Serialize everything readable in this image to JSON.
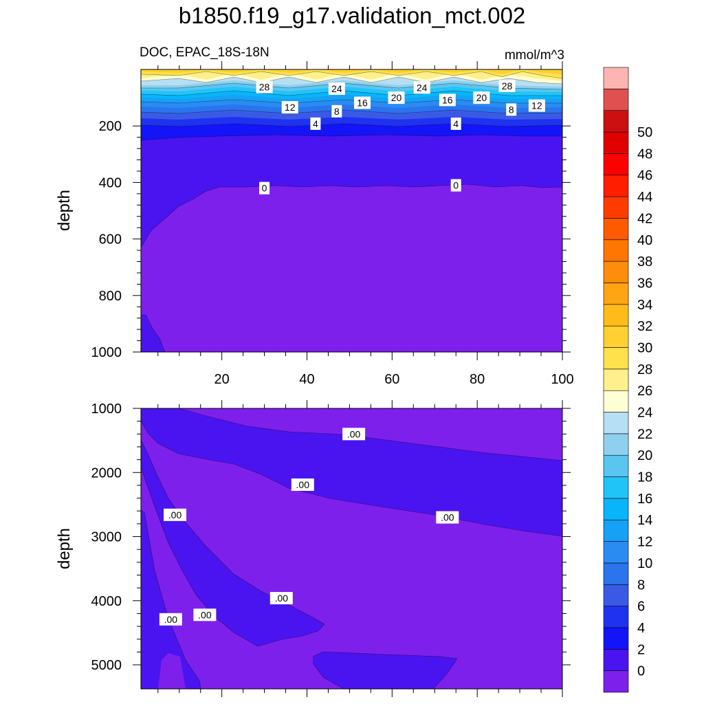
{
  "title": "b1850.f19_g17.validation_mct.002",
  "colors": {
    "levels": [
      "#7e20ec",
      "#4a14f0",
      "#1414f8",
      "#1e32f0",
      "#3a5ae6",
      "#2a74ee",
      "#2a8cf2",
      "#16a0f6",
      "#08b4fa",
      "#20c4f8",
      "#5ac6f0",
      "#8ed0ee",
      "#b6dff4",
      "#ffffd6",
      "#fff08c",
      "#ffe14c",
      "#ffd030",
      "#ffbb18",
      "#ffa514",
      "#ff8c0a",
      "#ff7600",
      "#ff5a00",
      "#ff3c00",
      "#ff1e00",
      "#ff0000",
      "#e00000",
      "#cc1010",
      "#e05050",
      "#ffb4b4"
    ]
  },
  "colorbar": {
    "labels": [
      "0",
      "2",
      "4",
      "6",
      "8",
      "10",
      "12",
      "14",
      "16",
      "18",
      "20",
      "22",
      "24",
      "26",
      "28",
      "30",
      "32",
      "34",
      "36",
      "38",
      "40",
      "42",
      "44",
      "46",
      "48",
      "50"
    ]
  },
  "chart_data": [
    {
      "type": "heatmap",
      "subtitle_left": "DOC, EPAC_18S-18N",
      "subtitle_right": "mmol/m^3",
      "ylabel": "depth",
      "xlabel": "",
      "xlim": [
        1,
        100
      ],
      "ylim": [
        1000,
        0
      ],
      "xticks": [
        "20",
        "40",
        "60",
        "80",
        "100"
      ],
      "xtick_values": [
        20,
        40,
        60,
        80,
        100
      ],
      "yticks": [
        "200",
        "400",
        "600",
        "800",
        "1000"
      ],
      "ytick_values": [
        200,
        400,
        600,
        800,
        1000
      ],
      "contour_labels": [
        {
          "text": "28",
          "x": 30,
          "y": 62
        },
        {
          "text": "24",
          "x": 47,
          "y": 68
        },
        {
          "text": "12",
          "x": 36,
          "y": 134
        },
        {
          "text": "8",
          "x": 47,
          "y": 148
        },
        {
          "text": "16",
          "x": 53,
          "y": 118
        },
        {
          "text": "20",
          "x": 61,
          "y": 100
        },
        {
          "text": "24",
          "x": 67,
          "y": 64
        },
        {
          "text": "16",
          "x": 73,
          "y": 108
        },
        {
          "text": "20",
          "x": 81,
          "y": 100
        },
        {
          "text": "28",
          "x": 87,
          "y": 58
        },
        {
          "text": "8",
          "x": 88,
          "y": 142
        },
        {
          "text": "12",
          "x": 94,
          "y": 128
        },
        {
          "text": "4",
          "x": 42,
          "y": 192
        },
        {
          "text": "4",
          "x": 75,
          "y": 192
        },
        {
          "text": "0",
          "x": 30,
          "y": 420
        },
        {
          "text": "0",
          "x": 75,
          "y": 410
        }
      ]
    },
    {
      "type": "heatmap",
      "ylabel": "depth",
      "xlabel": "",
      "xlim": [
        1,
        100
      ],
      "ylim": [
        5375,
        1000
      ],
      "yticks": [
        "1000",
        "2000",
        "3000",
        "4000",
        "5000"
      ],
      "ytick_values": [
        1000,
        2000,
        3000,
        4000,
        5000
      ],
      "contour_labels": [
        {
          "text": ".00",
          "x": 51,
          "y": 1400
        },
        {
          "text": ".00",
          "x": 39,
          "y": 2190
        },
        {
          "text": ".00",
          "x": 73,
          "y": 2700
        },
        {
          "text": ".00",
          "x": 9,
          "y": 2660
        },
        {
          "text": ".00",
          "x": 34,
          "y": 3960
        },
        {
          "text": ".00",
          "x": 16,
          "y": 4220
        },
        {
          "text": ".00",
          "x": 8,
          "y": 4290
        }
      ]
    }
  ]
}
